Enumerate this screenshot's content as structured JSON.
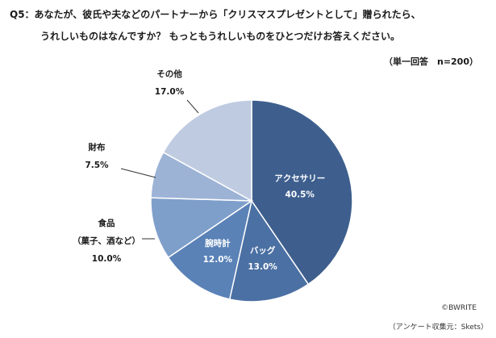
{
  "question": {
    "line1": "Q5：あなたが、彼氏や夫などのパートナーから「クリスマスプレゼントとして」贈られたら、",
    "line2": "うれしいものはなんですか？ もっともうれしいものをひとつだけお答えください。"
  },
  "note": "（単一回答　n=200）",
  "credit": "©BWRITE",
  "source": "（アンケート収集元：Skets）",
  "chart_data": {
    "type": "pie",
    "start": "12 o'clock",
    "direction": "clockwise",
    "unit": "%",
    "slices": [
      {
        "label": "アクセサリー",
        "value": 40.5,
        "value_label": "40.5%",
        "color": "#3E5F8E",
        "label_position": "inside"
      },
      {
        "label": "バッグ",
        "value": 13.0,
        "value_label": "13.0%",
        "color": "#4B70A3",
        "label_position": "inside"
      },
      {
        "label": "腕時計",
        "value": 12.0,
        "value_label": "12.0%",
        "color": "#5A82B7",
        "label_position": "inside"
      },
      {
        "label": "食品\n（菓子、酒など）",
        "value": 10.0,
        "value_label": "10.0%",
        "color": "#7F9FCB",
        "label_position": "outside"
      },
      {
        "label": "財布",
        "value": 7.5,
        "value_label": "7.5%",
        "color": "#9DB3D6",
        "label_position": "outside"
      },
      {
        "label": "その他",
        "value": 17.0,
        "value_label": "17.0%",
        "color": "#BFCBE1",
        "label_position": "outside"
      }
    ]
  }
}
